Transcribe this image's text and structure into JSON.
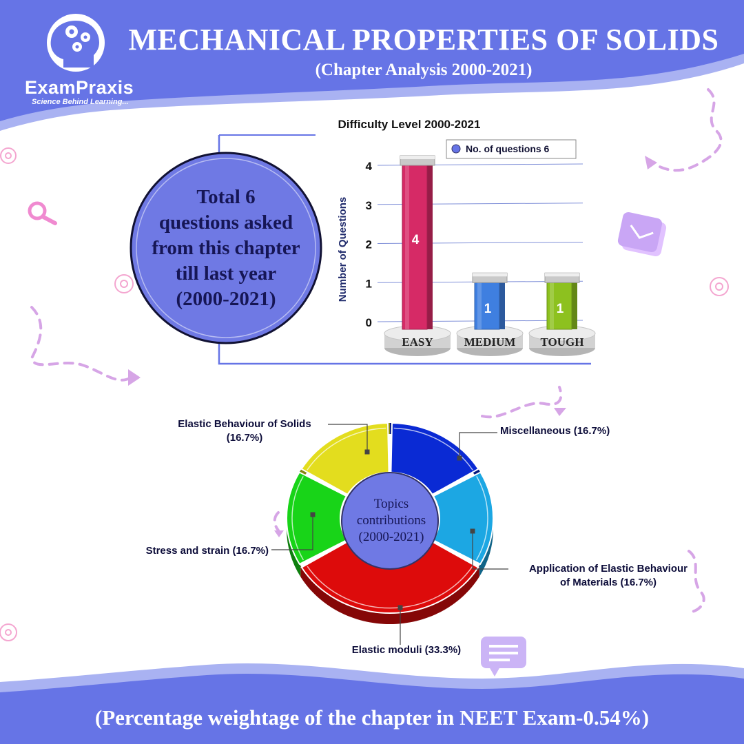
{
  "header": {
    "title": "MECHANICAL PROPERTIES OF SOLIDS",
    "subtitle": "(Chapter Analysis 2000-2021)"
  },
  "brand": {
    "name": "ExamPraxis",
    "tagline": "Science Behind Learning..."
  },
  "summary_circle": {
    "lines": [
      "Total 6",
      "questions asked",
      "from this chapter",
      "till last year",
      "(2000-2021)"
    ]
  },
  "footer": {
    "text": "(Percentage weightage of the chapter in NEET Exam-0.54%)"
  },
  "colors": {
    "band": "#6674e6",
    "band_light": "#a9b2f2",
    "circle_fill": "#6f79e4",
    "easy": "#d62a66",
    "medium": "#3f7fe0",
    "tough": "#8dc11f",
    "pie_yellow": "#e3dd1e",
    "pie_blue": "#0a2ad4",
    "pie_cyan": "#1ca7e3",
    "pie_red": "#dd0b0b",
    "pie_green": "#18d418"
  },
  "chart_data": [
    {
      "type": "bar",
      "title": "Difficulty Level 2000-2021",
      "xlabel": "",
      "ylabel": "Number of Questions",
      "categories": [
        "EASY",
        "MEDIUM",
        "TOUGH"
      ],
      "series": [
        {
          "name": "No. of questions 6",
          "values": [
            4,
            1,
            1
          ]
        }
      ],
      "data_labels": [
        "4",
        "1",
        "1"
      ],
      "yticks": [
        "0",
        "1",
        "2",
        "3",
        "4"
      ],
      "ylim": [
        0,
        4
      ],
      "grid": true,
      "legend": "top-right"
    },
    {
      "type": "pie",
      "title": "Topics contributions (2000-2021)",
      "center_label_lines": [
        "Topics",
        "contributions",
        "(2000-2021)"
      ],
      "slices": [
        {
          "label_lines": [
            "Elastic Behaviour of Solids",
            "(16.7%)"
          ],
          "value": 16.7
        },
        {
          "label_lines": [
            "Miscellaneous (16.7%)"
          ],
          "value": 16.7
        },
        {
          "label_lines": [
            "Application of Elastic Behaviour",
            "of Materials (16.7%)"
          ],
          "value": 16.7
        },
        {
          "label_lines": [
            "Elastic moduli (33.3%)"
          ],
          "value": 33.3
        },
        {
          "label_lines": [
            "Stress and strain (16.7%)"
          ],
          "value": 16.7
        }
      ]
    }
  ]
}
